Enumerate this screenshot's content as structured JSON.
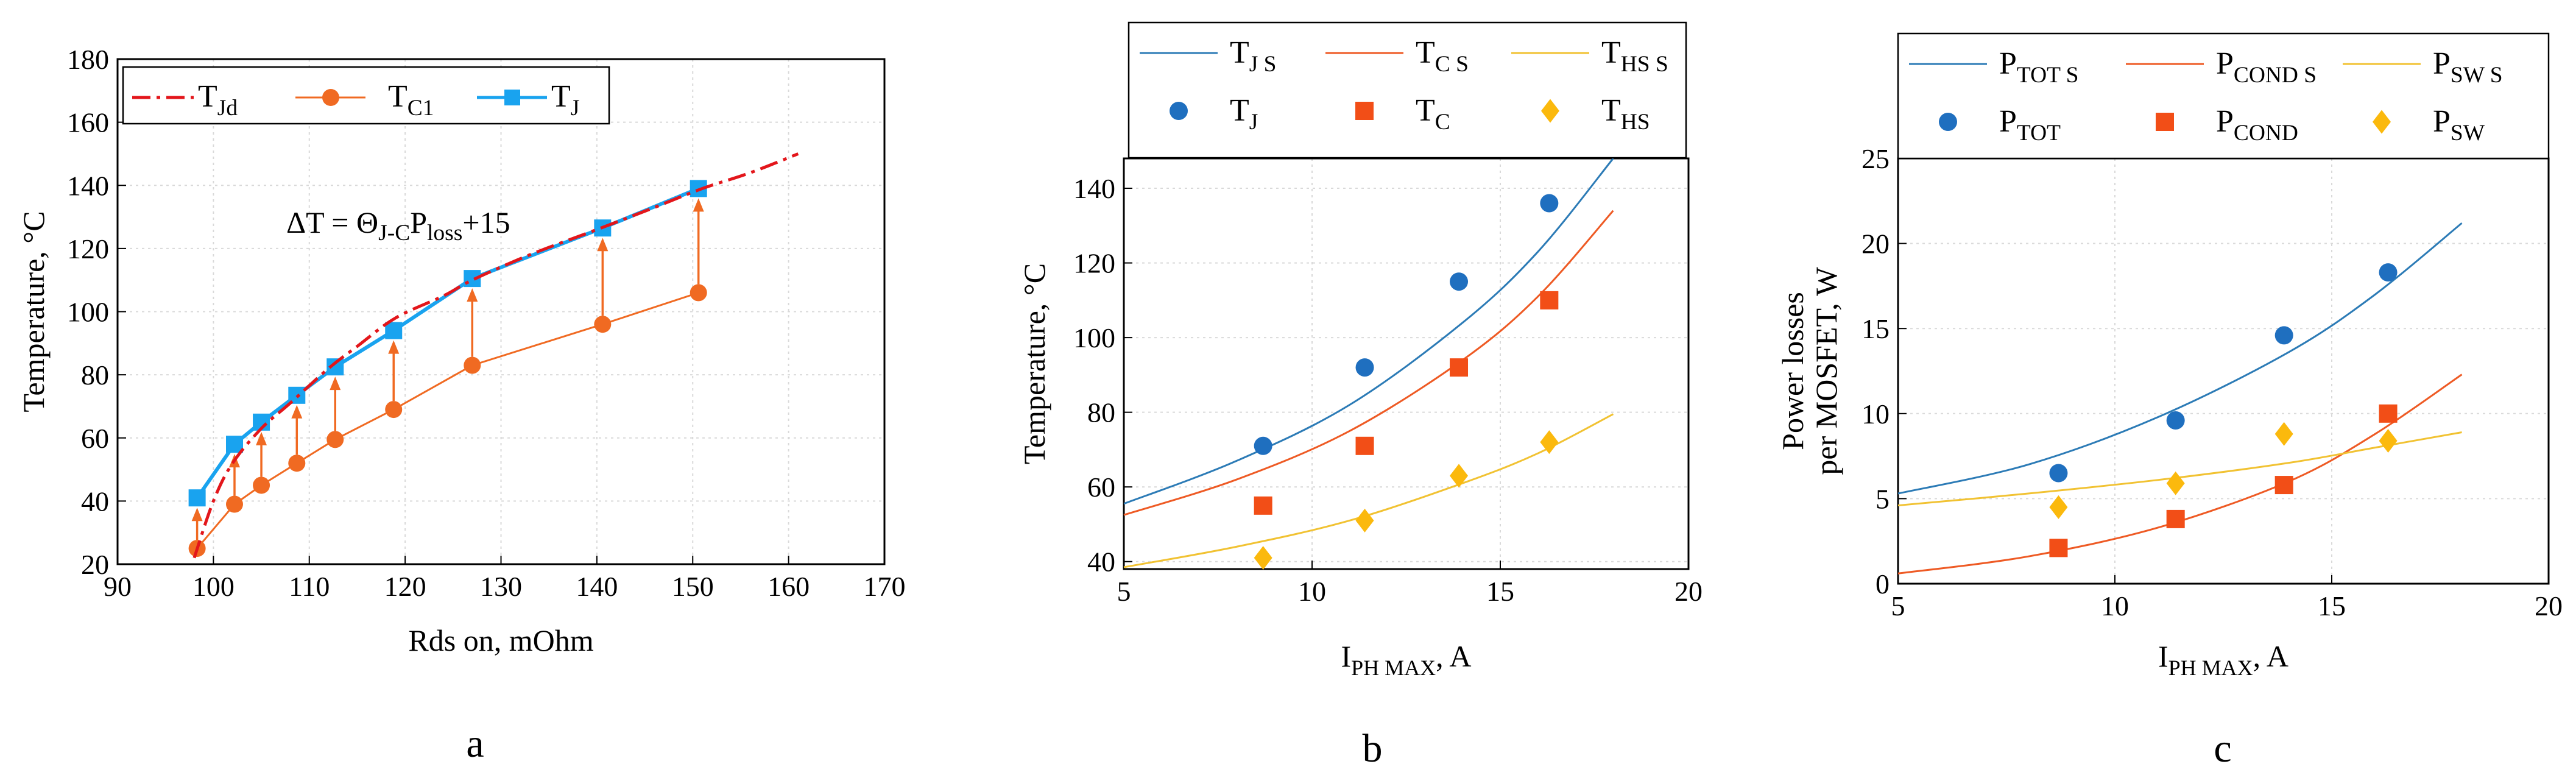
{
  "colors": {
    "blue_marker": "#19a3ef",
    "orange": "#f06a22",
    "red_dashed": "#e3161b",
    "blue_fit": "#2c7bb6",
    "orange_fit": "#ee5a24",
    "yellow_fit": "#f1c232",
    "yellow_marker": "#fbb90d",
    "blue_dot": "#1f6fbf",
    "orange_sq": "#f24e17"
  },
  "panels": {
    "a": {
      "label": "a"
    },
    "b": {
      "label": "b"
    },
    "c": {
      "label": "c"
    }
  },
  "chart_data": [
    {
      "id": "a",
      "type": "line",
      "xlabel": "Rds on, mOhm",
      "ylabel": "Temperature, °C",
      "xlim": [
        90,
        170
      ],
      "ylim": [
        20,
        180
      ],
      "xticks": [
        90,
        100,
        110,
        120,
        130,
        140,
        150,
        160,
        170
      ],
      "yticks": [
        20,
        40,
        60,
        80,
        100,
        120,
        140,
        160,
        180
      ],
      "grid": true,
      "legend_position": "top-left",
      "annotation": {
        "prefix": "ΔT = Θ",
        "sub1": "J-C",
        "mid": "P",
        "sub2": "loss",
        "suffix": "+15"
      },
      "series": [
        {
          "key": "TJd",
          "name_main": "T",
          "name_sub": "Jd",
          "style": "dashed",
          "x": [
            98,
            100,
            102,
            105,
            108,
            112,
            115,
            119,
            124,
            127,
            133,
            140,
            146,
            151,
            156,
            161
          ],
          "y": [
            22,
            40,
            52,
            63,
            71,
            82,
            89,
            98,
            105,
            110,
            118,
            126,
            133,
            139,
            144,
            150
          ]
        },
        {
          "key": "TC1",
          "name_main": "T",
          "name_sub": "C1",
          "style": "line-circle",
          "x": [
            98.3,
            102.2,
            105.0,
            108.7,
            112.7,
            118.8,
            127.0,
            140.6,
            150.6
          ],
          "y": [
            25,
            39,
            45,
            52,
            59.5,
            69,
            83,
            96,
            106
          ]
        },
        {
          "key": "TJ",
          "name_main": "T",
          "name_sub": "J",
          "style": "line-square",
          "x": [
            98.3,
            102.2,
            105.0,
            108.7,
            112.7,
            118.8,
            127.0,
            140.6,
            150.6
          ],
          "y": [
            41,
            58,
            65,
            73.5,
            82.5,
            94,
            110.5,
            126.5,
            139
          ]
        }
      ]
    },
    {
      "id": "b",
      "type": "scatter",
      "xlabel_main": "I",
      "xlabel_sub": "PH MAX",
      "xlabel_suffix": ", A",
      "ylabel": "Temperature, °C",
      "xlim": [
        5,
        20
      ],
      "ylim": [
        38,
        148
      ],
      "xticks": [
        5,
        10,
        15,
        20
      ],
      "yticks": [
        40,
        60,
        80,
        100,
        120,
        140
      ],
      "grid": true,
      "legend_position": "above",
      "series": [
        {
          "key": "TJS",
          "name_main": "T",
          "name_sub": "J S",
          "kind": "fit",
          "color_key": "blue_fit",
          "x": [
            5,
            8,
            11,
            14,
            16,
            18
          ],
          "y": [
            55.5,
            67,
            82,
            104,
            123,
            148
          ]
        },
        {
          "key": "TCS",
          "name_main": "T",
          "name_sub": "C S",
          "kind": "fit",
          "color_key": "orange_fit",
          "x": [
            5,
            8,
            11,
            14,
            16,
            18
          ],
          "y": [
            52.5,
            62,
            75,
            94,
            111,
            134
          ]
        },
        {
          "key": "THSS",
          "name_main": "T",
          "name_sub": "HS S",
          "kind": "fit",
          "color_key": "yellow_fit",
          "x": [
            5,
            8,
            11,
            14,
            16,
            18
          ],
          "y": [
            38.5,
            44,
            51,
            61,
            69,
            79.5
          ]
        },
        {
          "key": "TJ",
          "name_main": "T",
          "name_sub": "J",
          "kind": "circle",
          "color_key": "blue_dot",
          "x": [
            8.7,
            11.4,
            13.9,
            16.3
          ],
          "y": [
            71,
            92,
            115,
            136
          ]
        },
        {
          "key": "TC",
          "name_main": "T",
          "name_sub": "C",
          "kind": "square",
          "color_key": "orange_sq",
          "x": [
            8.7,
            11.4,
            13.9,
            16.3
          ],
          "y": [
            55,
            71,
            92,
            110
          ]
        },
        {
          "key": "THS",
          "name_main": "T",
          "name_sub": "HS",
          "kind": "diamond",
          "color_key": "yellow_marker",
          "x": [
            8.7,
            11.4,
            13.9,
            16.3
          ],
          "y": [
            41,
            51,
            63,
            72
          ]
        }
      ]
    },
    {
      "id": "c",
      "type": "scatter",
      "xlabel_main": "I",
      "xlabel_sub": "PH MAX",
      "xlabel_suffix": ", A",
      "ylabel_line1": "Power losses",
      "ylabel_line2": "per MOSFET, W",
      "xlim": [
        5,
        20
      ],
      "ylim": [
        0,
        25
      ],
      "xticks": [
        5,
        10,
        15,
        20
      ],
      "yticks": [
        0,
        5,
        10,
        15,
        20,
        25
      ],
      "grid": true,
      "legend_position": "above",
      "series": [
        {
          "key": "PTOTS",
          "name_main": "P",
          "name_sub": "TOT S",
          "kind": "fit",
          "color_key": "blue_fit",
          "x": [
            5,
            8,
            11,
            14,
            16,
            18
          ],
          "y": [
            5.3,
            7,
            9.8,
            13.6,
            17,
            21.2
          ]
        },
        {
          "key": "PCONDS",
          "name_main": "P",
          "name_sub": "COND S",
          "kind": "fit",
          "color_key": "orange_fit",
          "x": [
            5,
            8,
            11,
            14,
            16,
            18
          ],
          "y": [
            0.6,
            1.6,
            3.3,
            6,
            8.8,
            12.3
          ]
        },
        {
          "key": "PSWS",
          "name_main": "P",
          "name_sub": "SW S",
          "kind": "fit",
          "color_key": "yellow_fit",
          "x": [
            5,
            8,
            11,
            14,
            16,
            18
          ],
          "y": [
            4.6,
            5.3,
            6.1,
            7.1,
            8,
            8.9
          ]
        },
        {
          "key": "PTOT",
          "name_main": "P",
          "name_sub": "TOT",
          "kind": "circle",
          "color_key": "blue_dot",
          "x": [
            8.7,
            11.4,
            13.9,
            16.3
          ],
          "y": [
            6.5,
            9.6,
            14.6,
            18.3
          ]
        },
        {
          "key": "PCOND",
          "name_main": "P",
          "name_sub": "COND",
          "kind": "square",
          "color_key": "orange_sq",
          "x": [
            8.7,
            11.4,
            13.9,
            16.3
          ],
          "y": [
            2.1,
            3.8,
            5.8,
            10
          ]
        },
        {
          "key": "PSW",
          "name_main": "P",
          "name_sub": "SW",
          "kind": "diamond",
          "color_key": "yellow_marker",
          "x": [
            8.7,
            11.4,
            13.9,
            16.3
          ],
          "y": [
            4.5,
            5.9,
            8.8,
            8.4
          ]
        }
      ]
    }
  ]
}
